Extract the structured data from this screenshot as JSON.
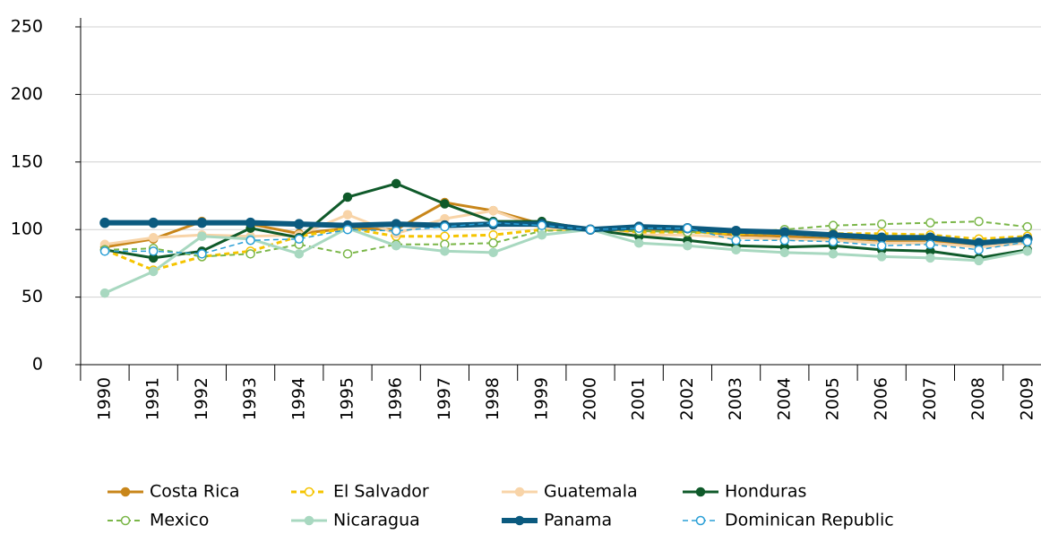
{
  "chart_data": {
    "type": "line",
    "categories": [
      "1990",
      "1991",
      "1992",
      "1993",
      "1994",
      "1995",
      "1996",
      "1997",
      "1998",
      "1999",
      "2000",
      "2001",
      "2002",
      "2003",
      "2004",
      "2005",
      "2006",
      "2007",
      "2008",
      "2009"
    ],
    "ylim": [
      0,
      250
    ],
    "yticks": [
      0,
      50,
      100,
      150,
      200,
      250
    ],
    "grid": true,
    "series": [
      {
        "name": "Costa Rica",
        "color": "#c8861a",
        "dash": false,
        "marker": "filled",
        "width": 3,
        "values": [
          87,
          93,
          106,
          104,
          97,
          101,
          100,
          120,
          114,
          104,
          100,
          99,
          99,
          96,
          95,
          93,
          91,
          91,
          88,
          92
        ]
      },
      {
        "name": "El Salvador",
        "color": "#f5c400",
        "dash": true,
        "marker": "open",
        "width": 3,
        "values": [
          85,
          70,
          80,
          84,
          95,
          101,
          95,
          95,
          96,
          100,
          100,
          98,
          98,
          97,
          97,
          97,
          97,
          96,
          93,
          95
        ]
      },
      {
        "name": "Guatemala",
        "color": "#f8d4a8",
        "dash": false,
        "marker": "filled",
        "width": 3,
        "values": [
          89,
          94,
          96,
          95,
          96,
          111,
          97,
          108,
          114,
          101,
          100,
          96,
          96,
          94,
          93,
          92,
          90,
          90,
          87,
          90
        ]
      },
      {
        "name": "Honduras",
        "color": "#0f5a2a",
        "dash": false,
        "marker": "filled",
        "width": 3,
        "values": [
          85,
          79,
          84,
          101,
          94,
          124,
          134,
          119,
          106,
          106,
          100,
          95,
          92,
          88,
          87,
          88,
          85,
          84,
          79,
          85
        ]
      },
      {
        "name": "Mexico",
        "color": "#7ab648",
        "dash": true,
        "marker": "open",
        "width": 2,
        "values": [
          85,
          86,
          80,
          82,
          89,
          82,
          89,
          89,
          90,
          99,
          100,
          99,
          98,
          98,
          100,
          103,
          104,
          105,
          106,
          102
        ]
      },
      {
        "name": "Nicaragua",
        "color": "#a8d8c0",
        "dash": false,
        "marker": "filled",
        "width": 3,
        "values": [
          53,
          69,
          95,
          93,
          82,
          101,
          88,
          84,
          83,
          96,
          100,
          90,
          88,
          85,
          83,
          82,
          80,
          79,
          77,
          84
        ]
      },
      {
        "name": "Panama",
        "color": "#0b5a7f",
        "dash": false,
        "marker": "filled",
        "width": 6,
        "values": [
          105,
          105,
          105,
          105,
          104,
          103,
          104,
          103,
          104,
          104,
          100,
          102,
          101,
          99,
          98,
          96,
          94,
          94,
          90,
          93
        ]
      },
      {
        "name": "Dominican Republic",
        "color": "#2a9fd6",
        "dash": true,
        "marker": "open",
        "width": 1.5,
        "values": [
          84,
          84,
          82,
          92,
          93,
          100,
          99,
          102,
          105,
          103,
          100,
          101,
          101,
          92,
          92,
          91,
          88,
          89,
          85,
          91
        ]
      }
    ]
  }
}
